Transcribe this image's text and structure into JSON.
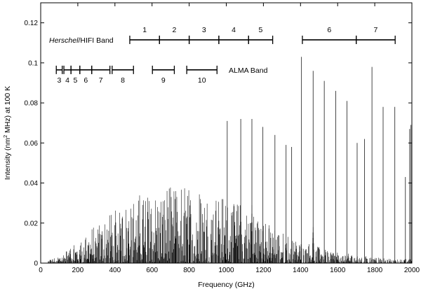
{
  "chart_data": {
    "type": "spectrum",
    "xlabel": "Frequency (GHz)",
    "ylabel_main": "Intensity (nm",
    "ylabel_sup": "2",
    "ylabel_rest": " MHz) at 100 K",
    "xlim": [
      0,
      2000
    ],
    "ylim": [
      0,
      0.13
    ],
    "xticks": [
      0,
      200,
      400,
      600,
      800,
      1000,
      1200,
      1400,
      1600,
      1800,
      2000
    ],
    "yticks": [
      0,
      0.02,
      0.04,
      0.06,
      0.08,
      0.1,
      0.12
    ],
    "ytick_labels": [
      "0",
      "0.02",
      "0.04",
      "0.06",
      "0.08",
      "0.1",
      "0.12"
    ],
    "grid": false,
    "hifi": {
      "label_italic": "Herschel",
      "label_rest": "/HIFI Band",
      "y": 0.1115,
      "bands": [
        {
          "name": "1",
          "range": [
            480,
            640
          ]
        },
        {
          "name": "2",
          "range": [
            640,
            800
          ]
        },
        {
          "name": "3",
          "range": [
            800,
            960
          ]
        },
        {
          "name": "4",
          "range": [
            960,
            1120
          ]
        },
        {
          "name": "5",
          "range": [
            1120,
            1250
          ]
        },
        {
          "name": "6",
          "range": [
            1410,
            1700
          ]
        },
        {
          "name": "7",
          "range": [
            1700,
            1910
          ]
        }
      ]
    },
    "alma": {
      "label": "ALMA Band",
      "y": 0.0965,
      "bands": [
        {
          "name": "3",
          "range": [
            84,
            116
          ]
        },
        {
          "name": "4",
          "range": [
            125,
            163
          ]
        },
        {
          "name": "5",
          "range": [
            163,
            211
          ]
        },
        {
          "name": "6",
          "range": [
            211,
            275
          ]
        },
        {
          "name": "7",
          "range": [
            275,
            373
          ]
        },
        {
          "name": "8",
          "range": [
            385,
            500
          ]
        },
        {
          "name": "9",
          "range": [
            602,
            720
          ]
        },
        {
          "name": "10",
          "range": [
            787,
            950
          ]
        }
      ]
    },
    "major_lines": [
      {
        "x": 1005,
        "y": 0.071
      },
      {
        "x": 1078,
        "y": 0.072
      },
      {
        "x": 1138,
        "y": 0.072
      },
      {
        "x": 1197,
        "y": 0.068
      },
      {
        "x": 1262,
        "y": 0.064
      },
      {
        "x": 1322,
        "y": 0.059
      },
      {
        "x": 1352,
        "y": 0.058
      },
      {
        "x": 1405,
        "y": 0.103
      },
      {
        "x": 1468,
        "y": 0.096
      },
      {
        "x": 1528,
        "y": 0.091
      },
      {
        "x": 1590,
        "y": 0.086
      },
      {
        "x": 1650,
        "y": 0.081
      },
      {
        "x": 1705,
        "y": 0.06
      },
      {
        "x": 1745,
        "y": 0.062
      },
      {
        "x": 1785,
        "y": 0.098
      },
      {
        "x": 1845,
        "y": 0.078
      },
      {
        "x": 1908,
        "y": 0.078
      },
      {
        "x": 1965,
        "y": 0.043
      },
      {
        "x": 1988,
        "y": 0.067
      },
      {
        "x": 1995,
        "y": 0.069
      }
    ],
    "dense_envelope": [
      [
        0,
        0
      ],
      [
        100,
        0.004
      ],
      [
        200,
        0.011
      ],
      [
        300,
        0.019
      ],
      [
        400,
        0.027
      ],
      [
        500,
        0.033
      ],
      [
        600,
        0.036
      ],
      [
        700,
        0.038
      ],
      [
        800,
        0.038
      ],
      [
        900,
        0.036
      ],
      [
        1000,
        0.032
      ],
      [
        1100,
        0.028
      ],
      [
        1200,
        0.021
      ],
      [
        1300,
        0.015
      ],
      [
        1400,
        0.011
      ],
      [
        1500,
        0.008
      ],
      [
        1600,
        0.006
      ],
      [
        1700,
        0.004
      ],
      [
        1800,
        0.003
      ],
      [
        1900,
        0.002
      ],
      [
        2000,
        0.002
      ]
    ]
  }
}
